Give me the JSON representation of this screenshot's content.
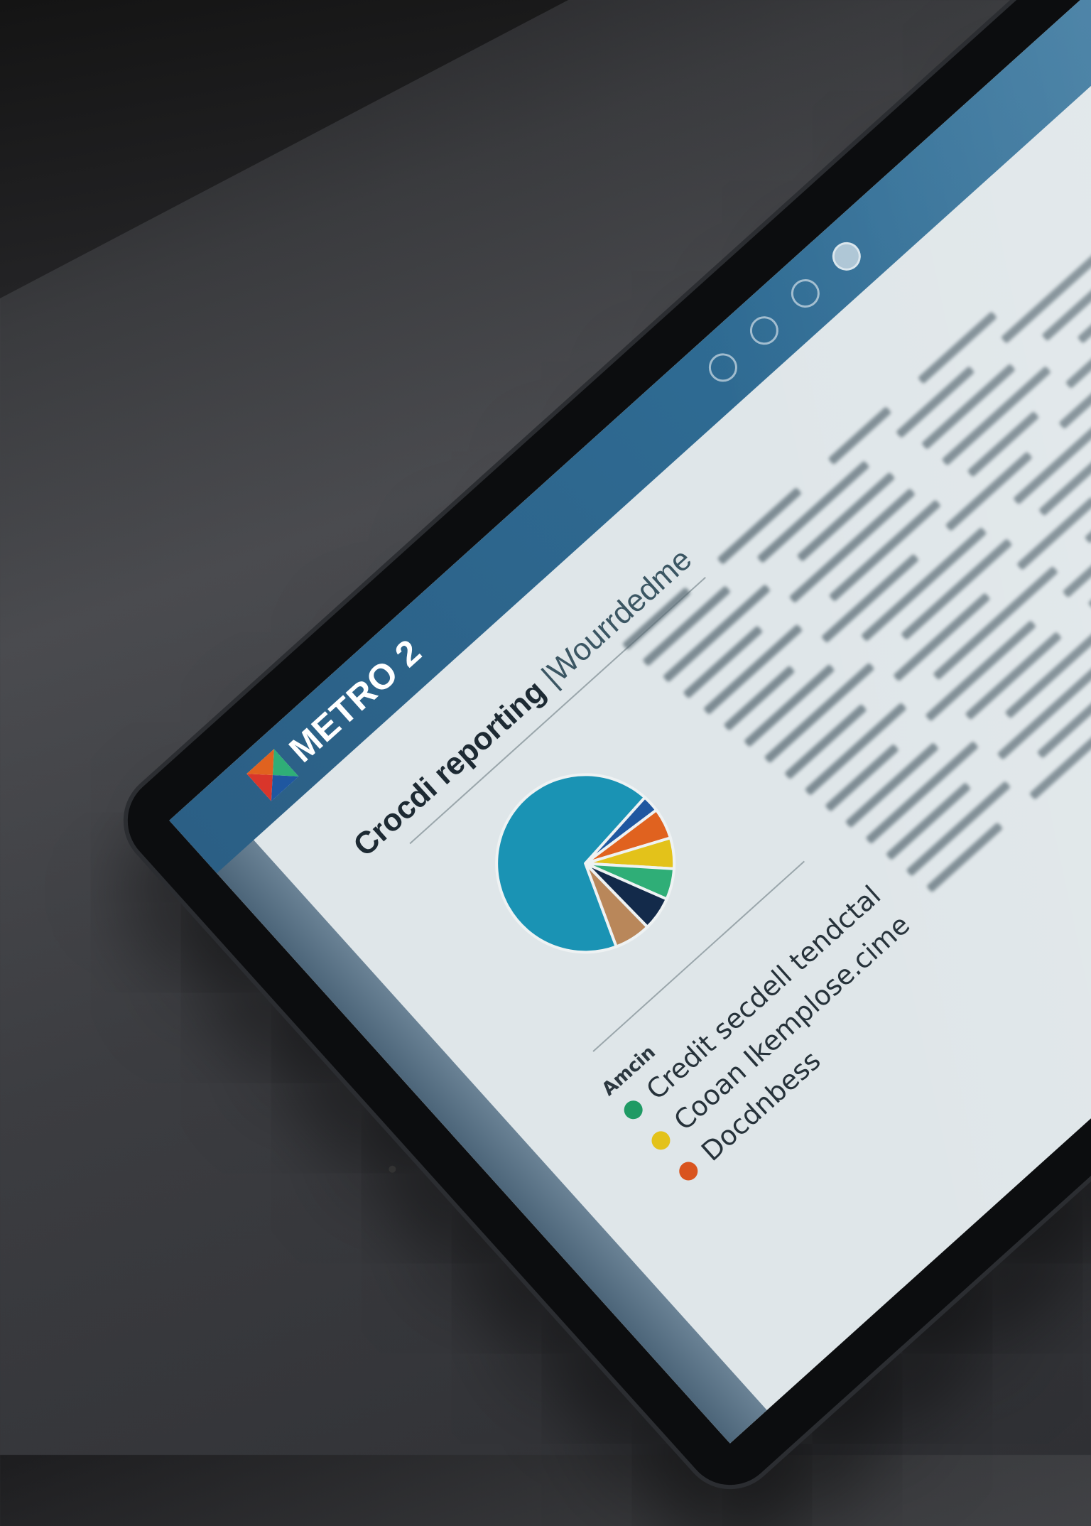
{
  "header": {
    "brand": "METRO 2",
    "icons": [
      "notification-icon",
      "settings-icon",
      "help-icon",
      "profile-icon"
    ]
  },
  "main": {
    "title": "Crocdi reporting",
    "title_separator": "|",
    "subtitle": "Wourrdedme"
  },
  "legend": {
    "heading": "Amcin",
    "items": [
      {
        "label": "Credit secdell tendctal",
        "color": "#1f9a64"
      },
      {
        "label": "Cooan Ikemplose.cime",
        "color": "#e3c21a"
      },
      {
        "label": "Docdnbess",
        "color": "#d9541e"
      }
    ]
  },
  "chart_data": {
    "type": "pie",
    "values": [
      66,
      3,
      5.5,
      5.5,
      5.5,
      6,
      6.5
    ],
    "colors": [
      "#1a93b4",
      "#1f57a0",
      "#e0621f",
      "#e3c21a",
      "#2fae77",
      "#132a4a",
      "#b9875a"
    ]
  },
  "colors": {
    "header": "#2f6c94",
    "screen_bg": "#dfe6e9"
  }
}
